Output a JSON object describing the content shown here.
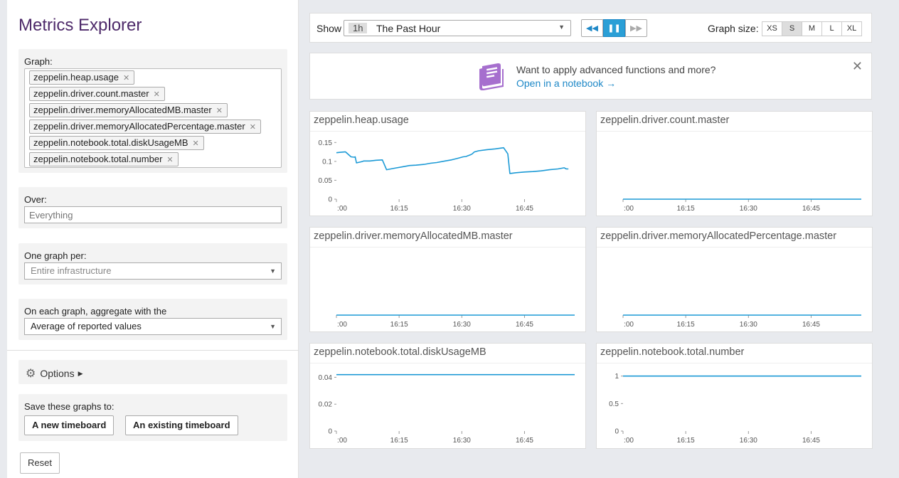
{
  "sidebar": {
    "title": "Metrics Explorer",
    "graph_label": "Graph:",
    "metrics": [
      "zeppelin.heap.usage",
      "zeppelin.driver.count.master",
      "zeppelin.driver.memoryAllocatedMB.master",
      "zeppelin.driver.memoryAllocatedPercentage.master",
      "zeppelin.notebook.total.diskUsageMB",
      "zeppelin.notebook.total.number"
    ],
    "over_label": "Over:",
    "over_placeholder": "Everything",
    "one_graph_per_label": "One graph per:",
    "one_graph_per_value": "Entire infrastructure",
    "aggregate_label": "On each graph, aggregate with the",
    "aggregate_value": "Average of reported values",
    "options_label": "Options",
    "save_label": "Save these graphs to:",
    "new_timeboard": "A new timeboard",
    "existing_timeboard": "An existing timeboard",
    "reset": "Reset"
  },
  "toolbar": {
    "show_label": "Show",
    "time_abbr": "1h",
    "time_text": "The Past Hour",
    "graph_size_label": "Graph size:",
    "sizes": [
      "XS",
      "S",
      "M",
      "L",
      "XL"
    ],
    "selected_size": "S"
  },
  "banner": {
    "text": "Want to apply advanced functions and more?",
    "link": "Open in a notebook →"
  },
  "colors": {
    "line": "#1c9ad6",
    "accent": "#2a9fd6",
    "title": "#4e2a6a",
    "notebook_icon": "#a66fce"
  },
  "chart_data": [
    {
      "type": "line",
      "title": "zeppelin.heap.usage",
      "x_ticks": [
        ":00",
        "16:15",
        "16:30",
        "16:45"
      ],
      "y_ticks": [
        "0",
        "0.05",
        "0.1",
        "0.15"
      ],
      "ylim": [
        0,
        0.16
      ],
      "x": [
        0,
        1,
        2,
        2.2,
        3.5,
        4.3,
        4.5,
        4.8,
        6.3,
        6.5,
        8,
        9.5,
        11,
        12,
        14,
        16,
        17.5,
        19,
        21,
        22.5,
        24,
        26,
        27.5,
        29,
        30.3,
        31,
        31.5,
        32,
        32.5,
        33,
        34,
        36,
        38,
        40,
        41,
        41.5,
        43,
        45,
        47,
        49,
        51,
        53,
        54.5,
        55,
        55.5
      ],
      "values": [
        0.123,
        0.124,
        0.125,
        0.125,
        0.112,
        0.111,
        0.112,
        0.096,
        0.1,
        0.101,
        0.101,
        0.103,
        0.104,
        0.078,
        0.082,
        0.086,
        0.089,
        0.09,
        0.092,
        0.095,
        0.097,
        0.101,
        0.104,
        0.108,
        0.112,
        0.113,
        0.115,
        0.117,
        0.12,
        0.125,
        0.128,
        0.131,
        0.133,
        0.136,
        0.12,
        0.068,
        0.07,
        0.072,
        0.073,
        0.075,
        0.078,
        0.08,
        0.083,
        0.08,
        0.08
      ]
    },
    {
      "type": "line",
      "title": "zeppelin.driver.count.master",
      "x_ticks": [
        ":00",
        "16:15",
        "16:30",
        "16:45"
      ],
      "y_ticks": [],
      "ylim": [
        0,
        1
      ],
      "x": [
        0,
        57
      ],
      "values": [
        0,
        0
      ]
    },
    {
      "type": "line",
      "title": "zeppelin.driver.memoryAllocatedMB.master",
      "x_ticks": [
        ":00",
        "16:15",
        "16:30",
        "16:45"
      ],
      "y_ticks": [],
      "ylim": [
        0,
        1
      ],
      "x": [
        0,
        57
      ],
      "values": [
        0,
        0
      ]
    },
    {
      "type": "line",
      "title": "zeppelin.driver.memoryAllocatedPercentage.master",
      "x_ticks": [
        ":00",
        "16:15",
        "16:30",
        "16:45"
      ],
      "y_ticks": [],
      "ylim": [
        0,
        1
      ],
      "x": [
        0,
        57
      ],
      "values": [
        0,
        0
      ]
    },
    {
      "type": "line",
      "title": "zeppelin.notebook.total.diskUsageMB",
      "x_ticks": [
        ":00",
        "16:15",
        "16:30",
        "16:45"
      ],
      "y_ticks": [
        "0",
        "0.02",
        "0.04"
      ],
      "ylim": [
        0,
        0.045
      ],
      "x": [
        0,
        57
      ],
      "values": [
        0.042,
        0.042
      ]
    },
    {
      "type": "line",
      "title": "zeppelin.notebook.total.number",
      "x_ticks": [
        ":00",
        "16:15",
        "16:30",
        "16:45"
      ],
      "y_ticks": [
        "0",
        "0.5",
        "1"
      ],
      "ylim": [
        0,
        1.1
      ],
      "x": [
        0,
        57
      ],
      "values": [
        1,
        1
      ]
    }
  ]
}
